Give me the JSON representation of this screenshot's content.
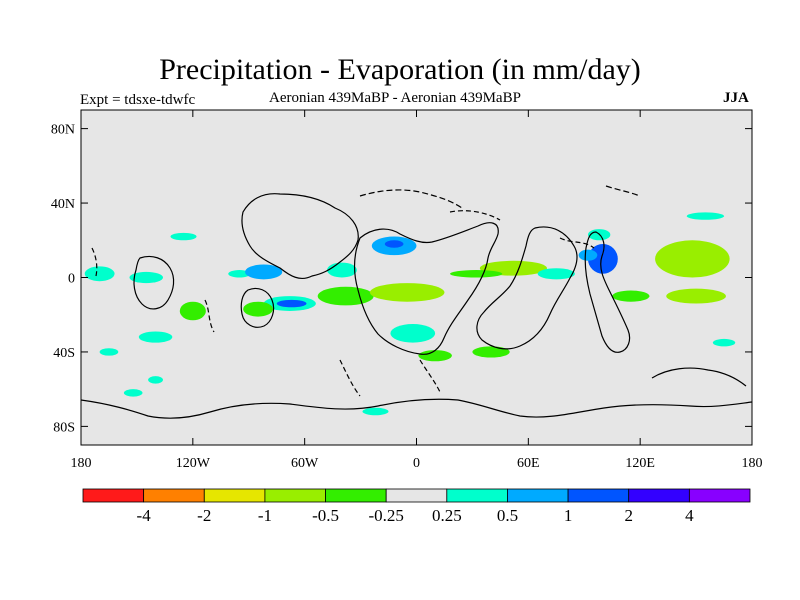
{
  "title": "Precipitation - Evaporation (in mm/day)",
  "experiment": "Expt = tdsxe-tdwfc",
  "subtitle": "Aeronian 439MaBP - Aeronian 439MaBP",
  "season": "JJA",
  "map": {
    "lat_range": [
      -90,
      90
    ],
    "lon_range": [
      -180,
      180
    ],
    "lat_ticks": [
      {
        "value": 80,
        "label": "80N"
      },
      {
        "value": 40,
        "label": "40N"
      },
      {
        "value": 0,
        "label": "0"
      },
      {
        "value": -40,
        "label": "40S"
      },
      {
        "value": -80,
        "label": "80S"
      }
    ],
    "lon_ticks": [
      {
        "value": -180,
        "label": "180"
      },
      {
        "value": -120,
        "label": "120W"
      },
      {
        "value": -60,
        "label": "60W"
      },
      {
        "value": 0,
        "label": "0"
      },
      {
        "value": 60,
        "label": "60E"
      },
      {
        "value": 120,
        "label": "120E"
      },
      {
        "value": 180,
        "label": "180"
      }
    ],
    "background_color": "#e6e6e6"
  },
  "colorbar": {
    "colors": [
      "#ff1a1a",
      "#ff8000",
      "#e6e600",
      "#99ee00",
      "#33ee00",
      "#e6e6e6",
      "#00ffcc",
      "#00aaff",
      "#0055ff",
      "#3300ff",
      "#8800ff"
    ],
    "labels": [
      "-4",
      "-2",
      "-1",
      "-0.5",
      "-0.25",
      "0.25",
      "0.5",
      "1",
      "2",
      "4"
    ]
  },
  "anomalies": [
    {
      "lon": -170,
      "lat": 2,
      "rlon": 8,
      "rlat": 4,
      "level": "cyan"
    },
    {
      "lon": -145,
      "lat": 0,
      "rlon": 9,
      "rlat": 3,
      "level": "cyan"
    },
    {
      "lon": -125,
      "lat": 22,
      "rlon": 7,
      "rlat": 2,
      "level": "cyan"
    },
    {
      "lon": -140,
      "lat": -32,
      "rlon": 9,
      "rlat": 3,
      "level": "cyan"
    },
    {
      "lon": -152,
      "lat": -62,
      "rlon": 5,
      "rlat": 2,
      "level": "cyan"
    },
    {
      "lon": -95,
      "lat": 2,
      "rlon": 6,
      "rlat": 2,
      "level": "cyan"
    },
    {
      "lon": -82,
      "lat": 3,
      "rlon": 10,
      "rlat": 4,
      "level": "lightblue"
    },
    {
      "lon": -68,
      "lat": -14,
      "rlon": 14,
      "rlat": 4,
      "level": "cyan"
    },
    {
      "lon": -67,
      "lat": -14,
      "rlon": 8,
      "rlat": 2,
      "level": "blue"
    },
    {
      "lon": -85,
      "lat": -17,
      "rlon": 8,
      "rlat": 4,
      "level": "green"
    },
    {
      "lon": -40,
      "lat": 4,
      "rlon": 8,
      "rlat": 4,
      "level": "cyan"
    },
    {
      "lon": -12,
      "lat": 17,
      "rlon": 12,
      "rlat": 5,
      "level": "lightblue"
    },
    {
      "lon": -12,
      "lat": 18,
      "rlon": 5,
      "rlat": 2,
      "level": "blue"
    },
    {
      "lon": -38,
      "lat": -10,
      "rlon": 15,
      "rlat": 5,
      "level": "green"
    },
    {
      "lon": -5,
      "lat": -8,
      "rlon": 20,
      "rlat": 5,
      "level": "lightgreen"
    },
    {
      "lon": -2,
      "lat": -30,
      "rlon": 12,
      "rlat": 5,
      "level": "cyan"
    },
    {
      "lon": 10,
      "lat": -42,
      "rlon": 9,
      "rlat": 3,
      "level": "green"
    },
    {
      "lon": 52,
      "lat": 5,
      "rlon": 18,
      "rlat": 4,
      "level": "lightgreen"
    },
    {
      "lon": 32,
      "lat": 2,
      "rlon": 14,
      "rlat": 2,
      "level": "green"
    },
    {
      "lon": 40,
      "lat": -40,
      "rlon": 10,
      "rlat": 3,
      "level": "green"
    },
    {
      "lon": 75,
      "lat": 2,
      "rlon": 10,
      "rlat": 3,
      "level": "cyan"
    },
    {
      "lon": 100,
      "lat": 10,
      "rlon": 8,
      "rlat": 8,
      "level": "blue"
    },
    {
      "lon": 92,
      "lat": 12,
      "rlon": 5,
      "rlat": 3,
      "level": "lightblue"
    },
    {
      "lon": 148,
      "lat": 10,
      "rlon": 20,
      "rlat": 10,
      "level": "lightgreen"
    },
    {
      "lon": 150,
      "lat": -10,
      "rlon": 16,
      "rlat": 4,
      "level": "lightgreen"
    },
    {
      "lon": 115,
      "lat": -10,
      "rlon": 10,
      "rlat": 3,
      "level": "green"
    },
    {
      "lon": 155,
      "lat": 33,
      "rlon": 10,
      "rlat": 2,
      "level": "cyan"
    },
    {
      "lon": 98,
      "lat": 23,
      "rlon": 6,
      "rlat": 3,
      "level": "cyan"
    },
    {
      "lon": -120,
      "lat": -18,
      "rlon": 7,
      "rlat": 5,
      "level": "green"
    },
    {
      "lon": -165,
      "lat": -40,
      "rlon": 5,
      "rlat": 2,
      "level": "cyan"
    },
    {
      "lon": -140,
      "lat": -55,
      "rlon": 4,
      "rlat": 2,
      "level": "cyan"
    },
    {
      "lon": -22,
      "lat": -72,
      "rlon": 7,
      "rlat": 2,
      "level": "cyan"
    },
    {
      "lon": 165,
      "lat": -35,
      "rlon": 6,
      "rlat": 2,
      "level": "cyan"
    }
  ]
}
